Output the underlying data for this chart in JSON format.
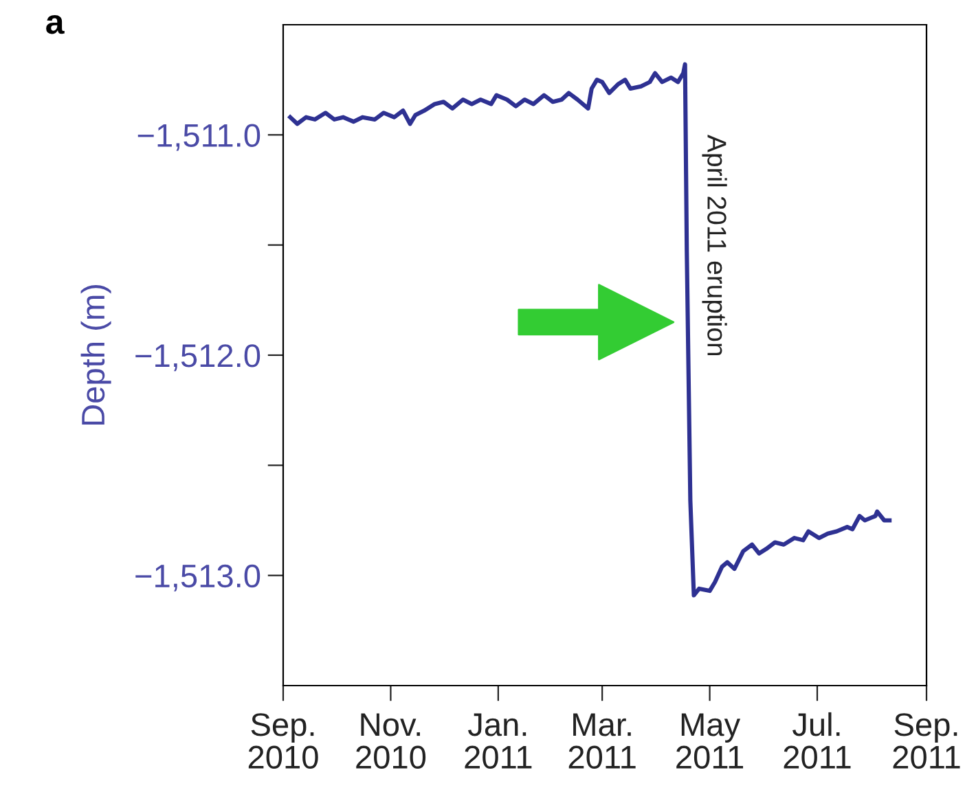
{
  "chart_data": {
    "type": "line",
    "title": "a",
    "ylabel": "Depth (m)",
    "x": [
      "2010-09-05",
      "2010-09-09",
      "2010-09-14",
      "2010-09-19",
      "2010-09-25",
      "2010-09-30",
      "2010-10-05",
      "2010-10-11",
      "2010-10-16",
      "2010-10-23",
      "2010-10-28",
      "2010-11-03",
      "2010-11-08",
      "2010-11-12",
      "2010-11-15",
      "2010-11-20",
      "2010-11-26",
      "2010-12-01",
      "2010-12-06",
      "2010-12-12",
      "2010-12-17",
      "2010-12-22",
      "2010-12-28",
      "2010-12-31",
      "2011-01-06",
      "2011-01-11",
      "2011-01-16",
      "2011-01-21",
      "2011-01-27",
      "2011-02-01",
      "2011-02-06",
      "2011-02-10",
      "2011-02-15",
      "2011-02-21",
      "2011-02-23",
      "2011-02-26",
      "2011-03-01",
      "2011-03-05",
      "2011-03-10",
      "2011-03-14",
      "2011-03-17",
      "2011-03-23",
      "2011-03-28",
      "2011-03-31",
      "2011-04-04",
      "2011-04-09",
      "2011-04-13",
      "2011-04-16",
      "2011-04-17",
      "2011-04-18",
      "2011-04-20",
      "2011-04-22",
      "2011-04-25",
      "2011-05-01",
      "2011-05-04",
      "2011-05-08",
      "2011-05-11",
      "2011-05-15",
      "2011-05-20",
      "2011-05-25",
      "2011-05-29",
      "2011-06-02",
      "2011-06-07",
      "2011-06-12",
      "2011-06-18",
      "2011-06-23",
      "2011-06-26",
      "2011-07-02",
      "2011-07-07",
      "2011-07-12",
      "2011-07-18",
      "2011-07-21",
      "2011-07-25",
      "2011-07-28",
      "2011-08-03",
      "2011-08-04",
      "2011-08-08",
      "2011-08-11"
    ],
    "series": [
      {
        "color": "#2e3192",
        "values": [
          -1510.92,
          -1510.95,
          -1510.92,
          -1510.93,
          -1510.9,
          -1510.93,
          -1510.92,
          -1510.94,
          -1510.92,
          -1510.93,
          -1510.9,
          -1510.92,
          -1510.89,
          -1510.95,
          -1510.91,
          -1510.89,
          -1510.86,
          -1510.85,
          -1510.88,
          -1510.84,
          -1510.86,
          -1510.84,
          -1510.86,
          -1510.82,
          -1510.84,
          -1510.87,
          -1510.84,
          -1510.86,
          -1510.82,
          -1510.85,
          -1510.84,
          -1510.81,
          -1510.84,
          -1510.88,
          -1510.79,
          -1510.75,
          -1510.76,
          -1510.81,
          -1510.77,
          -1510.75,
          -1510.79,
          -1510.78,
          -1510.76,
          -1510.72,
          -1510.76,
          -1510.74,
          -1510.76,
          -1510.72,
          -1510.68,
          -1511.53,
          -1512.66,
          -1513.09,
          -1513.06,
          -1513.07,
          -1513.03,
          -1512.96,
          -1512.94,
          -1512.97,
          -1512.89,
          -1512.86,
          -1512.9,
          -1512.88,
          -1512.85,
          -1512.86,
          -1512.83,
          -1512.84,
          -1512.8,
          -1512.83,
          -1512.81,
          -1512.8,
          -1512.78,
          -1512.79,
          -1512.73,
          -1512.75,
          -1512.73,
          -1512.71,
          -1512.75,
          -1512.75
        ]
      }
    ],
    "xlim": [
      "2010-09-01",
      "2011-09-01"
    ],
    "xticks": [
      {
        "value": "2010-09-01",
        "label": "Sep.\n2010"
      },
      {
        "value": "2010-11-01",
        "label": "Nov.\n2010"
      },
      {
        "value": "2011-01-01",
        "label": "Jan.\n2011"
      },
      {
        "value": "2011-03-01",
        "label": "Mar.\n2011"
      },
      {
        "value": "2011-05-01",
        "label": "May\n2011"
      },
      {
        "value": "2011-07-01",
        "label": "Jul.\n2011"
      },
      {
        "value": "2011-09-01",
        "label": "Sep.\n2011"
      }
    ],
    "ylim": [
      -1513.5,
      -1510.5
    ],
    "yticks": [
      {
        "value": -1513.0,
        "label": "−1,513.0"
      },
      {
        "value": -1512.5,
        "label": null
      },
      {
        "value": -1512.0,
        "label": "−1,512.0"
      },
      {
        "value": -1511.5,
        "label": null
      },
      {
        "value": -1511.0,
        "label": "−1,511.0"
      }
    ],
    "annotations": [
      {
        "text": "April 2011 eruption",
        "x": "2011-04-18",
        "y": -1511.85
      }
    ],
    "grid": false,
    "legend": false,
    "marker": "none",
    "line_style": "solid"
  }
}
